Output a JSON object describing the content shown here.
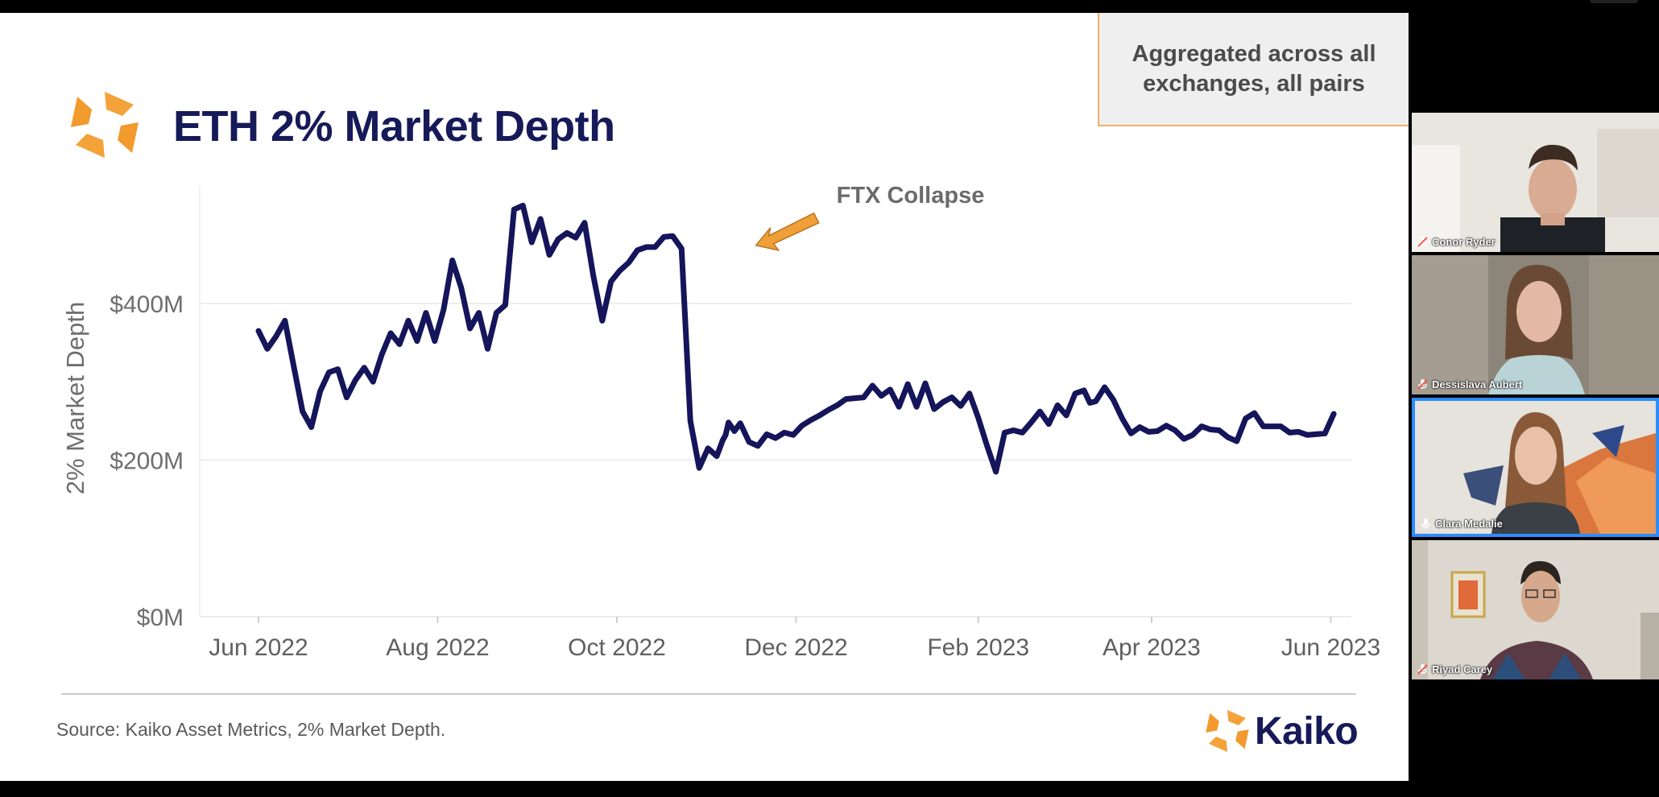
{
  "slide": {
    "title": "ETH 2% Market Depth",
    "note": "Aggregated across all\nexchanges, all pairs",
    "source": "Source: Kaiko Asset Metrics, 2% Market Depth.",
    "brand": "Kaiko",
    "logo_icon": "kaiko-logo-icon",
    "colors": {
      "title": "#161a58",
      "line": "#14155a",
      "accent": "#f0a038"
    }
  },
  "chart_data": {
    "type": "line",
    "title": "",
    "ylabel": "2% Market Depth",
    "xlabel": "",
    "ylim": [
      0,
      550
    ],
    "yticks": [
      {
        "value": 0,
        "label": "$0M"
      },
      {
        "value": 200,
        "label": "$200M"
      },
      {
        "value": 400,
        "label": "$400M"
      }
    ],
    "xticks": [
      {
        "value": 0,
        "label": "Jun 2022"
      },
      {
        "value": 61,
        "label": "Aug 2022"
      },
      {
        "value": 122,
        "label": "Oct 2022"
      },
      {
        "value": 183,
        "label": "Dec 2022"
      },
      {
        "value": 245,
        "label": "Feb 2023"
      },
      {
        "value": 304,
        "label": "Apr 2023"
      },
      {
        "value": 365,
        "label": "Jun 2023"
      }
    ],
    "xlim": [
      -20,
      372
    ],
    "x_unit": "days since 2022-06-01",
    "annotation": {
      "text": "FTX Collapse",
      "x": 160,
      "y": 470
    },
    "series": [
      {
        "name": "ETH 2% Market Depth ($M)",
        "x": [
          0,
          3,
          6,
          9,
          12,
          15,
          18,
          21,
          24,
          27,
          30,
          33,
          36,
          39,
          42,
          45,
          48,
          51,
          54,
          57,
          60,
          63,
          66,
          69,
          72,
          75,
          78,
          81,
          84,
          87,
          90,
          93,
          96,
          99,
          102,
          105,
          108,
          111,
          114,
          117,
          120,
          123,
          126,
          129,
          132,
          135,
          138,
          141,
          144,
          147,
          150,
          153,
          156,
          158,
          159,
          160,
          162,
          164,
          167,
          170,
          173,
          176,
          179,
          182,
          185,
          188,
          191,
          194,
          197,
          200,
          203,
          206,
          209,
          212,
          215,
          218,
          221,
          224,
          227,
          230,
          233,
          236,
          239,
          242,
          245,
          248,
          251,
          254,
          257,
          260,
          263,
          266,
          269,
          272,
          275,
          278,
          281,
          283,
          285,
          288,
          291,
          294,
          297,
          300,
          303,
          306,
          309,
          312,
          315,
          318,
          321,
          324,
          327,
          330,
          333,
          336,
          339,
          342,
          345,
          348,
          351,
          354,
          357,
          360,
          363,
          366
        ],
        "values": [
          365,
          342,
          358,
          378,
          320,
          262,
          242,
          288,
          312,
          316,
          280,
          302,
          318,
          300,
          335,
          362,
          348,
          378,
          352,
          388,
          352,
          392,
          455,
          420,
          368,
          388,
          342,
          388,
          398,
          520,
          525,
          478,
          508,
          462,
          482,
          490,
          484,
          503,
          435,
          378,
          428,
          442,
          452,
          468,
          472,
          472,
          485,
          486,
          470,
          250,
          190,
          215,
          205,
          225,
          232,
          248,
          237,
          247,
          223,
          218,
          233,
          228,
          235,
          232,
          244,
          251,
          257,
          264,
          270,
          278,
          279,
          280,
          295,
          282,
          290,
          268,
          297,
          268,
          298,
          265,
          274,
          280,
          269,
          285,
          254,
          218,
          185,
          235,
          238,
          235,
          248,
          262,
          246,
          270,
          257,
          285,
          289,
          273,
          275,
          293,
          277,
          253,
          234,
          242,
          236,
          237,
          244,
          238,
          227,
          232,
          243,
          239,
          238,
          229,
          224,
          253,
          260,
          243,
          243,
          243,
          235,
          236,
          232,
          233,
          234,
          259
        ]
      }
    ]
  },
  "participants": [
    {
      "name": "Conor Ryder",
      "active": false,
      "mic_icon": "muted-mic-icon"
    },
    {
      "name": "Dessislava Aubert",
      "active": false,
      "mic_icon": "muted-mic-icon"
    },
    {
      "name": "Clara Medalie",
      "active": true,
      "mic_icon": "mic-icon"
    },
    {
      "name": "Riyad Carey",
      "active": false,
      "mic_icon": "muted-mic-icon"
    }
  ]
}
